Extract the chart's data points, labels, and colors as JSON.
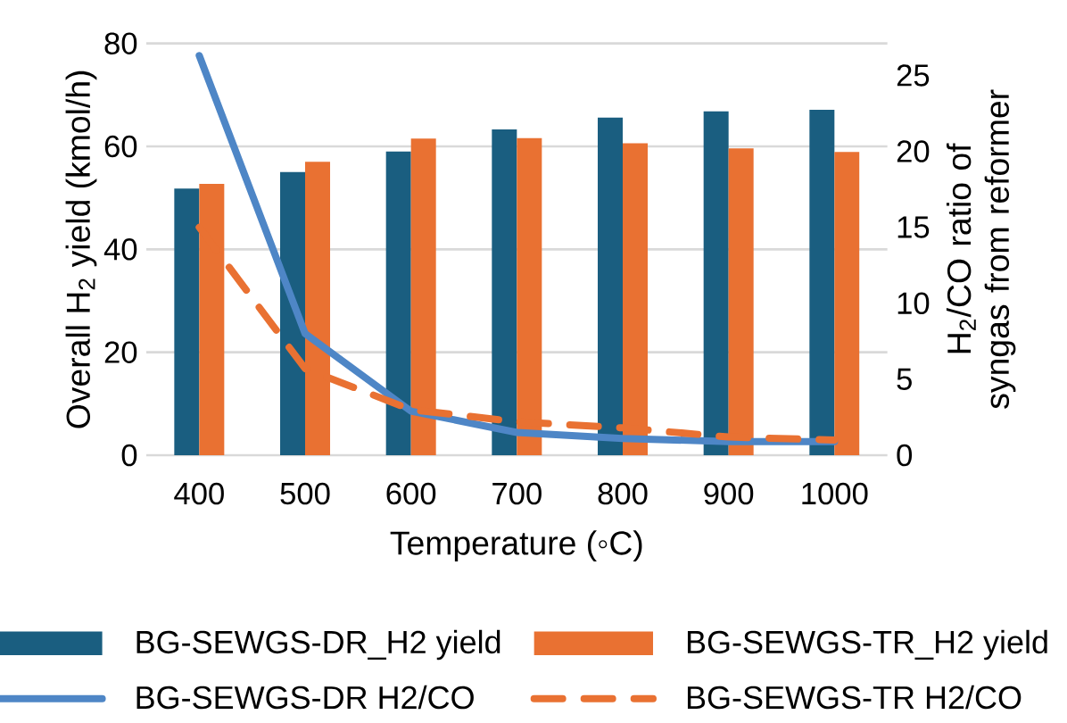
{
  "chart_data": {
    "type": "bar",
    "xlabel": "Temperature (◦C)",
    "ylabel": "Overall H$_{2}$ yield (kmol/h)",
    "y2label": "H$_{2}$/CO ratio of syngas from reformer",
    "categories": [
      "400",
      "500",
      "600",
      "700",
      "800",
      "900",
      "1000"
    ],
    "series": [
      {
        "name": "BG-SEWGS-DR_H2 yield",
        "color": "#1a5e80",
        "values": [
          51.8,
          55,
          59,
          63.3,
          65.6,
          66.8,
          67.1
        ]
      },
      {
        "name": "BG-SEWGS-TR_H2 yield",
        "color": "#e97132",
        "values": [
          52.7,
          57,
          61.5,
          61.6,
          60.6,
          59.6,
          58.9
        ]
      },
      {
        "name": "BG-SEWGS-DR  H2/CO",
        "color": "#4e86c6",
        "type": "line",
        "axis": "y2",
        "line_style": "solid",
        "values": [
          26.3,
          8.0,
          2.9,
          1.5,
          1.1,
          0.9,
          0.9
        ]
      },
      {
        "name": "BG-SEWGS-TR  H2/CO",
        "color": "#e97132",
        "type": "line",
        "axis": "y2",
        "line_style": "dashed",
        "values": [
          15.0,
          5.7,
          3.0,
          2.2,
          1.8,
          1.2,
          1.0
        ]
      }
    ],
    "ylim": [
      0,
      80
    ],
    "yticks": [
      0,
      20,
      40,
      60,
      80
    ],
    "y2lim": [
      0,
      27.1
    ],
    "y2ticks": [
      0,
      5,
      10,
      15,
      20,
      25
    ],
    "grid": "y",
    "legend": "bottom",
    "marker": "none"
  }
}
